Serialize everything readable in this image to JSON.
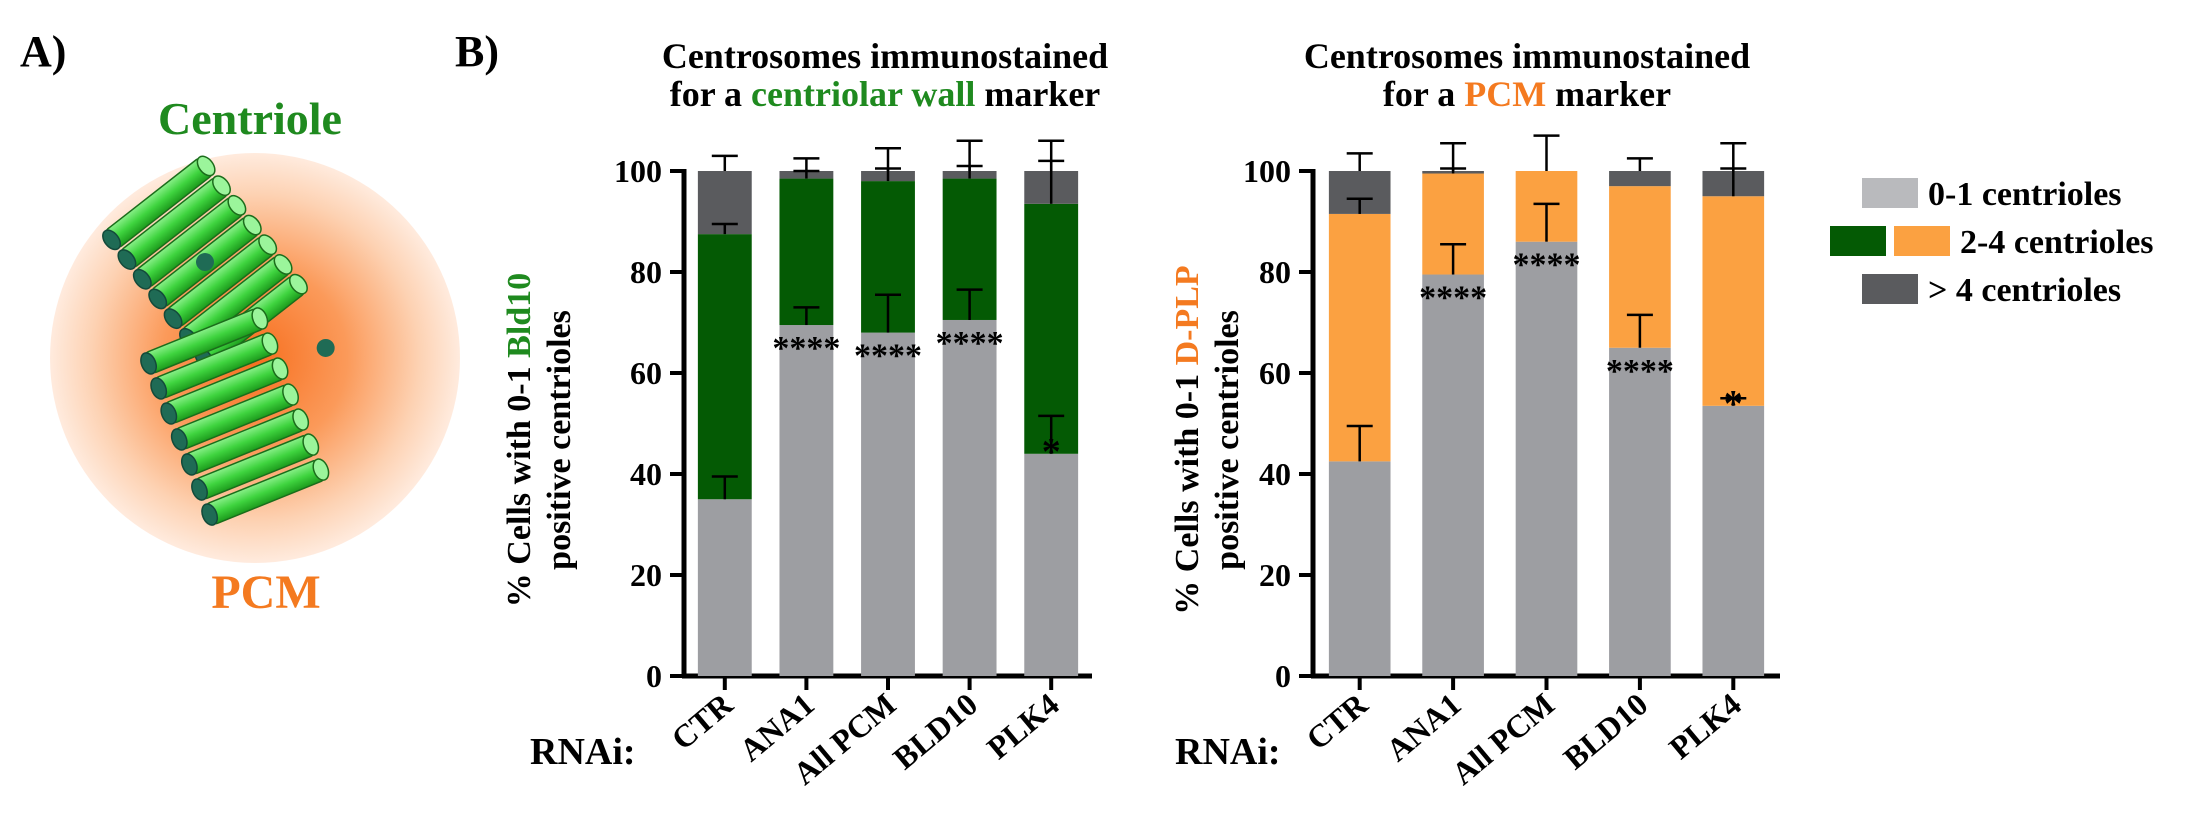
{
  "panel_a": {
    "label": "A)",
    "centriole_label": "Centriole",
    "pcm_label": "PCM"
  },
  "panel_b": {
    "label": "B)",
    "rnai_label": "RNAi:"
  },
  "colors": {
    "gray_low": "#9d9ea2",
    "gray_high": "#5a5b5e",
    "legend_gray_low": "#b9babd",
    "green_mid": "#045a04",
    "orange_mid": "#fba141",
    "green_text": "#1f8a1f",
    "orange_text": "#f47a20"
  },
  "legend": {
    "items": [
      {
        "label": "0-1 centrioles"
      },
      {
        "label": "2-4 centrioles"
      },
      {
        "label": "> 4 centrioles"
      }
    ]
  },
  "chart_data": [
    {
      "type": "bar",
      "stacked": true,
      "title_line1": "Centrosomes immunostained",
      "title_line2_pre": "for a ",
      "title_line2_hl": "centriolar wall",
      "title_line2_post": " marker",
      "ylabel_line1_pre": "% Cells with 0-1 ",
      "ylabel_line1_hl": "Bld10",
      "ylabel_line2": "positive centrioles",
      "ylim": [
        0,
        100
      ],
      "yticks": [
        "0",
        "20",
        "40",
        "60",
        "80",
        "100"
      ],
      "categories": [
        "CTR",
        "ANA1",
        "All PCM",
        "BLD10",
        "PLK4"
      ],
      "series": [
        {
          "name": "0-1 centrioles",
          "values": [
            35,
            69.5,
            68,
            70.5,
            44
          ],
          "err": [
            4.5,
            3.5,
            7.5,
            6,
            7.5
          ]
        },
        {
          "name": "2-4 centrioles",
          "values": [
            52.5,
            29,
            30,
            28,
            49.5
          ],
          "err": [
            2,
            1.5,
            2.5,
            2.5,
            8.5
          ]
        },
        {
          "name": "> 4 centrioles",
          "values": [
            12.5,
            1.5,
            2,
            1.5,
            6.5
          ],
          "err": [
            3,
            2.5,
            4.5,
            6,
            6
          ]
        }
      ],
      "significance": [
        "",
        "****",
        "****",
        "****",
        "*"
      ]
    },
    {
      "type": "bar",
      "stacked": true,
      "title_line1": "Centrosomes immunostained",
      "title_line2_pre": "for a ",
      "title_line2_hl": "PCM",
      "title_line2_post": " marker",
      "ylabel_line1_pre": "% Cells with 0-1 ",
      "ylabel_line1_hl": "D-PLP",
      "ylabel_line2": "positive centrioles",
      "ylim": [
        0,
        100
      ],
      "yticks": [
        "0",
        "20",
        "40",
        "60",
        "80",
        "100"
      ],
      "categories": [
        "CTR",
        "ANA1",
        "All PCM",
        "BLD10",
        "PLK4"
      ],
      "series": [
        {
          "name": "0-1 centrioles",
          "values": [
            42.5,
            79.5,
            86,
            65,
            53.5
          ],
          "err": [
            7,
            6,
            7.5,
            6.5,
            1.5
          ]
        },
        {
          "name": "2-4 centrioles",
          "values": [
            49,
            20,
            14,
            32,
            41.5
          ],
          "err": [
            3,
            1,
            0,
            0,
            5.5
          ]
        },
        {
          "name": "> 4 centrioles",
          "values": [
            8.5,
            0.5,
            0,
            3,
            5
          ],
          "err": [
            3.5,
            5.5,
            7,
            2.5,
            5.5
          ]
        }
      ],
      "significance": [
        "",
        "****",
        "****",
        "****",
        "*"
      ]
    }
  ]
}
